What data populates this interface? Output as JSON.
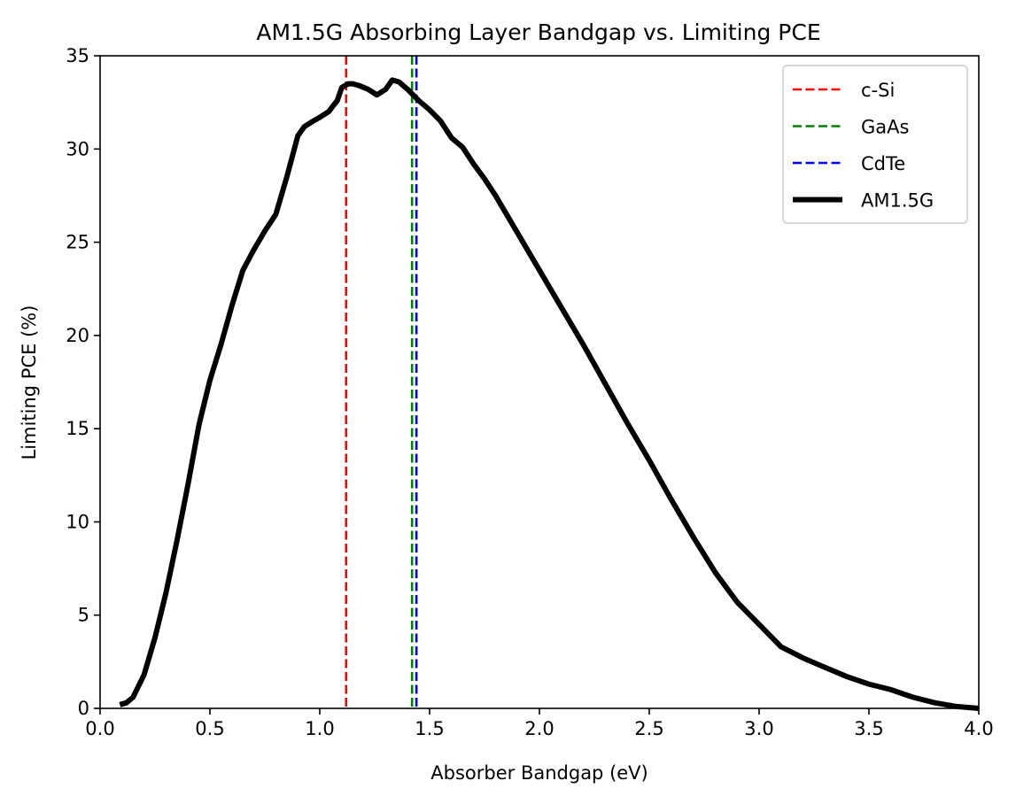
{
  "chart_data": {
    "type": "line",
    "title": "AM1.5G Absorbing Layer Bandgap vs. Limiting PCE",
    "xlabel": "Absorber Bandgap (eV)",
    "ylabel": "Limiting PCE (%)",
    "xlim": [
      0.0,
      4.0
    ],
    "ylim": [
      0,
      35
    ],
    "xticks": [
      0.0,
      0.5,
      1.0,
      1.5,
      2.0,
      2.5,
      3.0,
      3.5,
      4.0
    ],
    "xtick_labels": [
      "0.0",
      "0.5",
      "1.0",
      "1.5",
      "2.0",
      "2.5",
      "3.0",
      "3.5",
      "4.0"
    ],
    "yticks": [
      0,
      5,
      10,
      15,
      20,
      25,
      30,
      35
    ],
    "ytick_labels": [
      "0",
      "5",
      "10",
      "15",
      "20",
      "25",
      "30",
      "35"
    ],
    "grid": false,
    "legend_position": "top-right",
    "vertical_lines": [
      {
        "name": "c-Si",
        "x": 1.12,
        "color": "#ff0000",
        "style": "dashed"
      },
      {
        "name": "GaAs",
        "x": 1.42,
        "color": "#008000",
        "style": "dashed"
      },
      {
        "name": "CdTe",
        "x": 1.44,
        "color": "#0000ff",
        "style": "dashed"
      }
    ],
    "series": [
      {
        "name": "AM1.5G",
        "color": "#000000",
        "style": "solid",
        "x": [
          0.09,
          0.12,
          0.15,
          0.2,
          0.25,
          0.3,
          0.35,
          0.4,
          0.45,
          0.5,
          0.55,
          0.6,
          0.65,
          0.7,
          0.75,
          0.8,
          0.85,
          0.9,
          0.93,
          0.97,
          1.0,
          1.04,
          1.08,
          1.1,
          1.13,
          1.15,
          1.18,
          1.22,
          1.26,
          1.3,
          1.33,
          1.36,
          1.4,
          1.45,
          1.5,
          1.55,
          1.6,
          1.63,
          1.65,
          1.7,
          1.75,
          1.8,
          1.9,
          2.0,
          2.1,
          2.2,
          2.3,
          2.4,
          2.5,
          2.6,
          2.7,
          2.8,
          2.9,
          3.0,
          3.1,
          3.2,
          3.3,
          3.4,
          3.5,
          3.6,
          3.7,
          3.8,
          3.9,
          4.0
        ],
        "y": [
          0.2,
          0.3,
          0.6,
          1.8,
          3.8,
          6.2,
          9.0,
          12.0,
          15.2,
          17.6,
          19.5,
          21.6,
          23.5,
          24.6,
          25.6,
          26.5,
          28.5,
          30.7,
          31.2,
          31.5,
          31.7,
          32.0,
          32.6,
          33.3,
          33.5,
          33.5,
          33.4,
          33.2,
          32.9,
          33.2,
          33.7,
          33.6,
          33.2,
          32.6,
          32.1,
          31.5,
          30.6,
          30.3,
          30.1,
          29.2,
          28.4,
          27.5,
          25.5,
          23.5,
          21.5,
          19.5,
          17.4,
          15.3,
          13.3,
          11.2,
          9.2,
          7.3,
          5.7,
          4.5,
          3.3,
          2.7,
          2.2,
          1.7,
          1.3,
          1.0,
          0.6,
          0.3,
          0.1,
          0.0
        ]
      }
    ]
  }
}
